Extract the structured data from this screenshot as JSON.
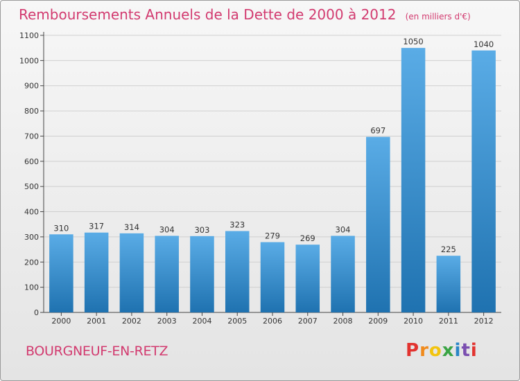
{
  "header": {
    "title": "Remboursements Annuels de la Dette de 2000 à 2012",
    "unit": "(en milliers d'€)"
  },
  "commune": "BOURGNEUF-EN-RETZ",
  "logo": {
    "text": "Proxiti",
    "letters": [
      "P",
      "r",
      "o",
      "x",
      "i",
      "t",
      "i"
    ],
    "colors": [
      "#e2332f",
      "#f08a1c",
      "#f2c40f",
      "#3aa444",
      "#2a86c6",
      "#7b4fb0",
      "#e2332f"
    ]
  },
  "colors": {
    "title": "#d23a6f",
    "bar_light": "#5aace6",
    "bar_dark": "#1f72b0",
    "grid": "#cfcfcf"
  },
  "chart_data": {
    "type": "bar",
    "title": "Remboursements Annuels de la Dette de 2000 à 2012",
    "unit": "(en milliers d'€)",
    "xlabel": "",
    "ylabel": "",
    "categories": [
      "2000",
      "2001",
      "2002",
      "2003",
      "2004",
      "2005",
      "2006",
      "2007",
      "2008",
      "2009",
      "2010",
      "2011",
      "2012"
    ],
    "values": [
      310,
      317,
      314,
      304,
      303,
      323,
      279,
      269,
      304,
      697,
      1050,
      225,
      1040
    ],
    "ylim": [
      0,
      1100
    ],
    "yticks": [
      0,
      100,
      200,
      300,
      400,
      500,
      600,
      700,
      800,
      900,
      1000,
      1100
    ],
    "grid": true,
    "legend": "none"
  }
}
